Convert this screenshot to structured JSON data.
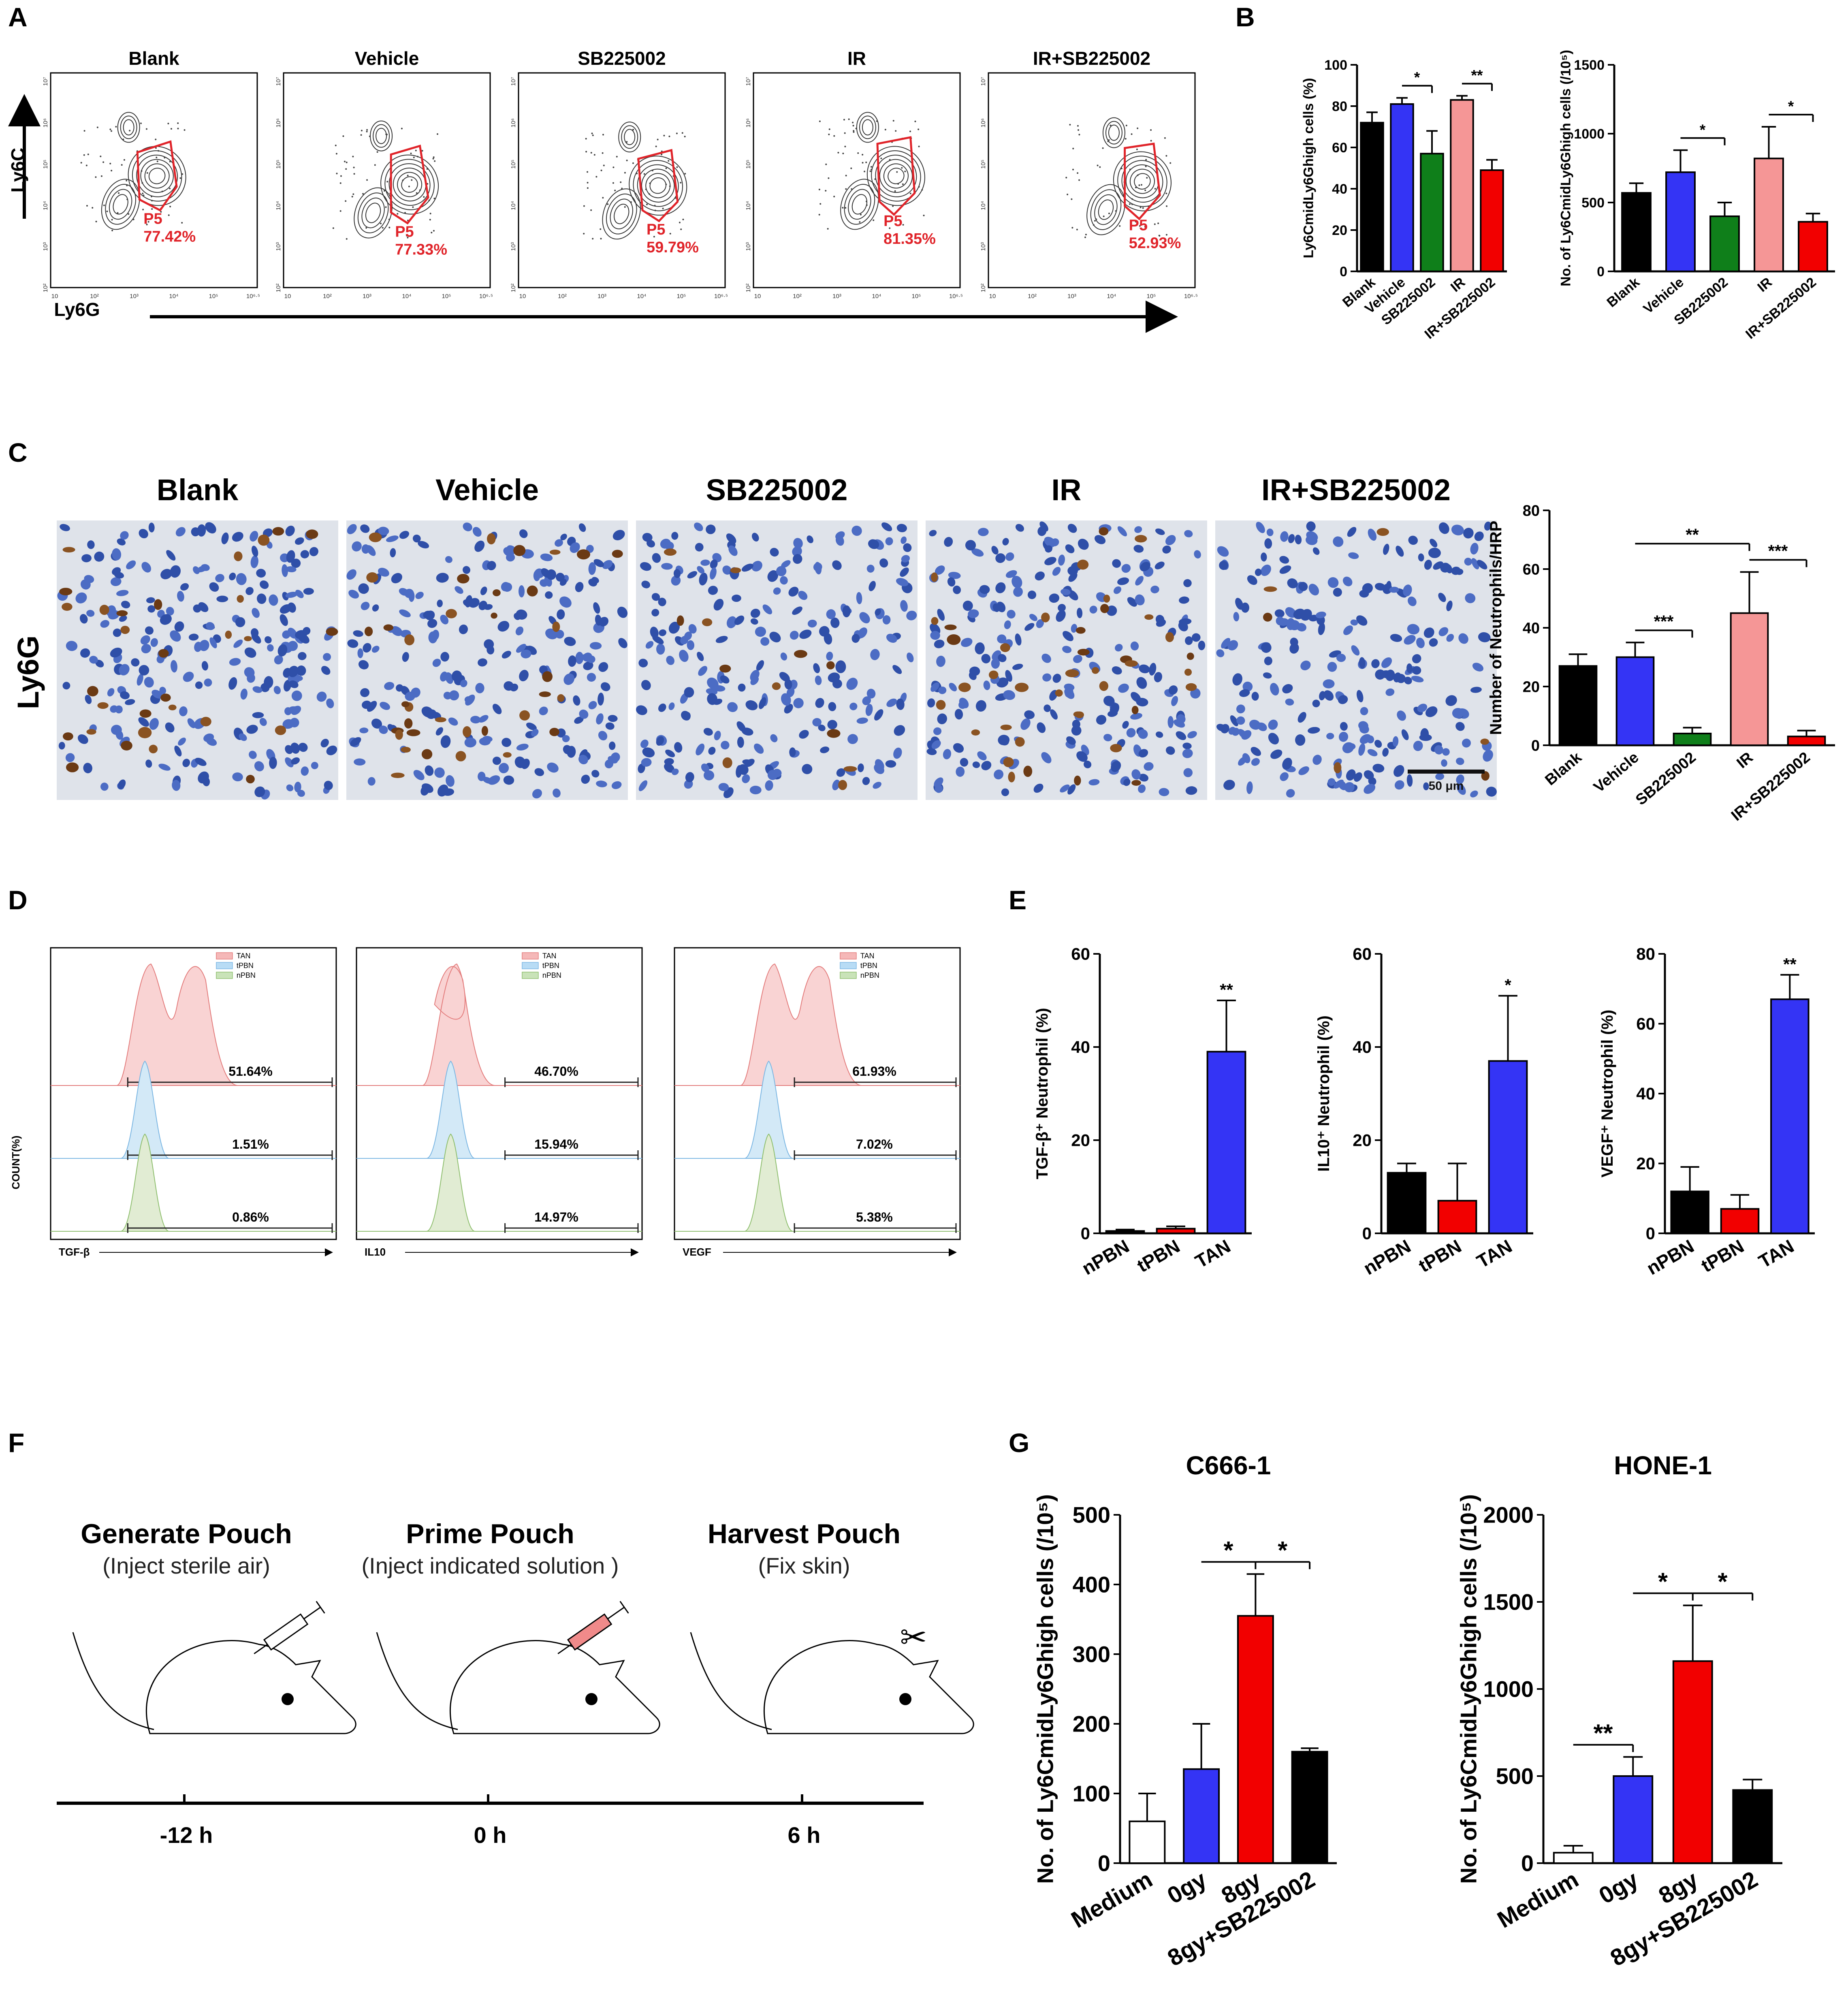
{
  "panels": {
    "A": "A",
    "B": "B",
    "C": "C",
    "D": "D",
    "E": "E",
    "F": "F",
    "G": "G"
  },
  "colors": {
    "black": "#000000",
    "blue": "#3434f5",
    "green": "#0f7f1a",
    "pink": "#f59696",
    "red": "#f20000",
    "white": "#ffffff",
    "gate": "#e0242a"
  },
  "panelA": {
    "ylabel": "Ly6C",
    "xlabel": "Ly6G",
    "gate_name": "P5",
    "plots": [
      {
        "title": "Blank",
        "pct": "77.42%"
      },
      {
        "title": "Vehicle",
        "pct": "77.33%"
      },
      {
        "title": "SB225002",
        "pct": "59.79%"
      },
      {
        "title": "IR",
        "pct": "81.35%"
      },
      {
        "title": "IR+SB225002",
        "pct": "52.93%"
      }
    ],
    "xticks": [
      "10",
      "10²",
      "10³",
      "10⁴",
      "10⁵",
      "10⁶·⁵"
    ],
    "yticks": [
      "10²",
      "10³",
      "10⁴",
      "10⁵",
      "10⁶",
      "10⁷"
    ]
  },
  "panelC": {
    "row_label": "Ly6G",
    "titles": [
      "Blank",
      "Vehicle",
      "SB225002",
      "IR",
      "IR+SB225002"
    ],
    "scalebar": "50 μm"
  },
  "panelD": {
    "ylabel": "COUNT(%)",
    "legend": [
      "TAN",
      "tPBN",
      "nPBN"
    ],
    "plots": [
      {
        "xlabel": "TGF-β",
        "pcts": [
          "51.64%",
          "1.51%",
          "0.86%"
        ]
      },
      {
        "xlabel": "IL10",
        "pcts": [
          "46.70%",
          "15.94%",
          "14.97%"
        ]
      },
      {
        "xlabel": "VEGF",
        "pcts": [
          "61.93%",
          "7.02%",
          "5.38%"
        ]
      }
    ]
  },
  "panelF": {
    "steps": [
      {
        "title": "Generate Pouch",
        "sub": "(Inject sterile air)",
        "time": "-12 h"
      },
      {
        "title": "Prime Pouch",
        "sub": "(Inject  indicated solution )",
        "time": "0 h"
      },
      {
        "title": "Harvest Pouch",
        "sub": "(Fix skin)",
        "time": "6 h"
      }
    ]
  },
  "chart_data": [
    {
      "id": "B1",
      "type": "bar",
      "categories": [
        "Blank",
        "Vehicle",
        "SB225002",
        "IR",
        "IR+SB225002"
      ],
      "values": [
        72,
        81,
        57,
        83,
        49
      ],
      "errors": [
        5,
        3,
        11,
        2,
        5
      ],
      "ylabel": "Ly6CmidLy6Ghigh cells (%)",
      "ylim": [
        0,
        100
      ],
      "yticks": [
        0,
        20,
        40,
        60,
        80,
        100
      ],
      "colors": [
        "black",
        "blue",
        "green",
        "pink",
        "red"
      ],
      "annotations": [
        {
          "from": 1,
          "to": 2,
          "label": "*"
        },
        {
          "from": 3,
          "to": 4,
          "label": "**"
        }
      ]
    },
    {
      "id": "B2",
      "type": "bar",
      "categories": [
        "Blank",
        "Vehicle",
        "SB225002",
        "IR",
        "IR+SB225002"
      ],
      "values": [
        570,
        720,
        400,
        820,
        360
      ],
      "errors": [
        70,
        160,
        100,
        230,
        60
      ],
      "ylabel": "No. of Ly6CmidLy6Ghigh cells (/10⁵)",
      "ylim": [
        0,
        1500
      ],
      "yticks": [
        0,
        500,
        1000,
        1500
      ],
      "colors": [
        "black",
        "blue",
        "green",
        "pink",
        "red"
      ],
      "annotations": [
        {
          "from": 1,
          "to": 2,
          "label": "*"
        },
        {
          "from": 3,
          "to": 4,
          "label": "*"
        }
      ]
    },
    {
      "id": "C1",
      "type": "bar",
      "categories": [
        "Blank",
        "Vehicle",
        "SB225002",
        "IR",
        "IR+SB225002"
      ],
      "values": [
        27,
        30,
        4,
        45,
        3
      ],
      "errors": [
        4,
        5,
        2,
        14,
        2
      ],
      "ylabel": "Number of Neutrophils/HRP",
      "ylim": [
        0,
        80
      ],
      "yticks": [
        0,
        20,
        40,
        60,
        80
      ],
      "colors": [
        "black",
        "blue",
        "green",
        "pink",
        "red"
      ],
      "annotations": [
        {
          "from": 1,
          "to": 2,
          "label": "***"
        },
        {
          "from": 1,
          "to": 3,
          "label": "**"
        },
        {
          "from": 3,
          "to": 4,
          "label": "***"
        }
      ]
    },
    {
      "id": "E1",
      "type": "bar",
      "categories": [
        "nPBN",
        "tPBN",
        "TAN"
      ],
      "values": [
        0.5,
        1,
        39
      ],
      "errors": [
        0.3,
        0.5,
        11
      ],
      "ylabel": "TGF-β⁺ Neutrophil (%)",
      "ylim": [
        0,
        60
      ],
      "yticks": [
        0,
        20,
        40,
        60
      ],
      "colors": [
        "black",
        "red",
        "blue"
      ],
      "annotations": [
        {
          "on": 2,
          "label": "**"
        }
      ]
    },
    {
      "id": "E2",
      "type": "bar",
      "categories": [
        "nPBN",
        "tPBN",
        "TAN"
      ],
      "values": [
        13,
        7,
        37
      ],
      "errors": [
        2,
        8,
        14
      ],
      "ylabel": "IL10⁺ Neutrophil (%)",
      "ylim": [
        0,
        60
      ],
      "yticks": [
        0,
        20,
        40,
        60
      ],
      "colors": [
        "black",
        "red",
        "blue"
      ],
      "annotations": [
        {
          "on": 2,
          "label": "*"
        }
      ]
    },
    {
      "id": "E3",
      "type": "bar",
      "categories": [
        "nPBN",
        "tPBN",
        "TAN"
      ],
      "values": [
        12,
        7,
        67
      ],
      "errors": [
        7,
        4,
        7
      ],
      "ylabel": "VEGF⁺ Neutrophil (%)",
      "ylim": [
        0,
        80
      ],
      "yticks": [
        0,
        20,
        40,
        60,
        80
      ],
      "colors": [
        "black",
        "red",
        "blue"
      ],
      "annotations": [
        {
          "on": 2,
          "label": "**"
        }
      ]
    },
    {
      "id": "G1",
      "type": "bar",
      "title": "C666-1",
      "categories": [
        "Medium",
        "0gy",
        "8gy",
        "8gy+SB225002"
      ],
      "values": [
        60,
        135,
        355,
        160
      ],
      "errors": [
        40,
        65,
        60,
        5
      ],
      "ylabel": "No. of Ly6CmidLy6Ghigh cells (/10⁵)",
      "ylim": [
        0,
        500
      ],
      "yticks": [
        0,
        100,
        200,
        300,
        400,
        500
      ],
      "colors": [
        "white",
        "blue",
        "red",
        "black"
      ],
      "annotations": [
        {
          "from": 1,
          "to": 2,
          "label": "*"
        },
        {
          "from": 2,
          "to": 3,
          "label": "*"
        }
      ]
    },
    {
      "id": "G2",
      "type": "bar",
      "title": "HONE-1",
      "categories": [
        "Medium",
        "0gy",
        "8gy",
        "8gy+SB225002"
      ],
      "values": [
        60,
        500,
        1160,
        420
      ],
      "errors": [
        40,
        110,
        320,
        60
      ],
      "ylabel": "No. of Ly6CmidLy6Ghigh cells (/10⁵)",
      "ylim": [
        0,
        2000
      ],
      "yticks": [
        0,
        500,
        1000,
        1500,
        2000
      ],
      "colors": [
        "white",
        "blue",
        "red",
        "black"
      ],
      "annotations": [
        {
          "from": 0,
          "to": 1,
          "label": "**"
        },
        {
          "from": 1,
          "to": 2,
          "label": "*"
        },
        {
          "from": 2,
          "to": 3,
          "label": "*"
        }
      ]
    }
  ]
}
